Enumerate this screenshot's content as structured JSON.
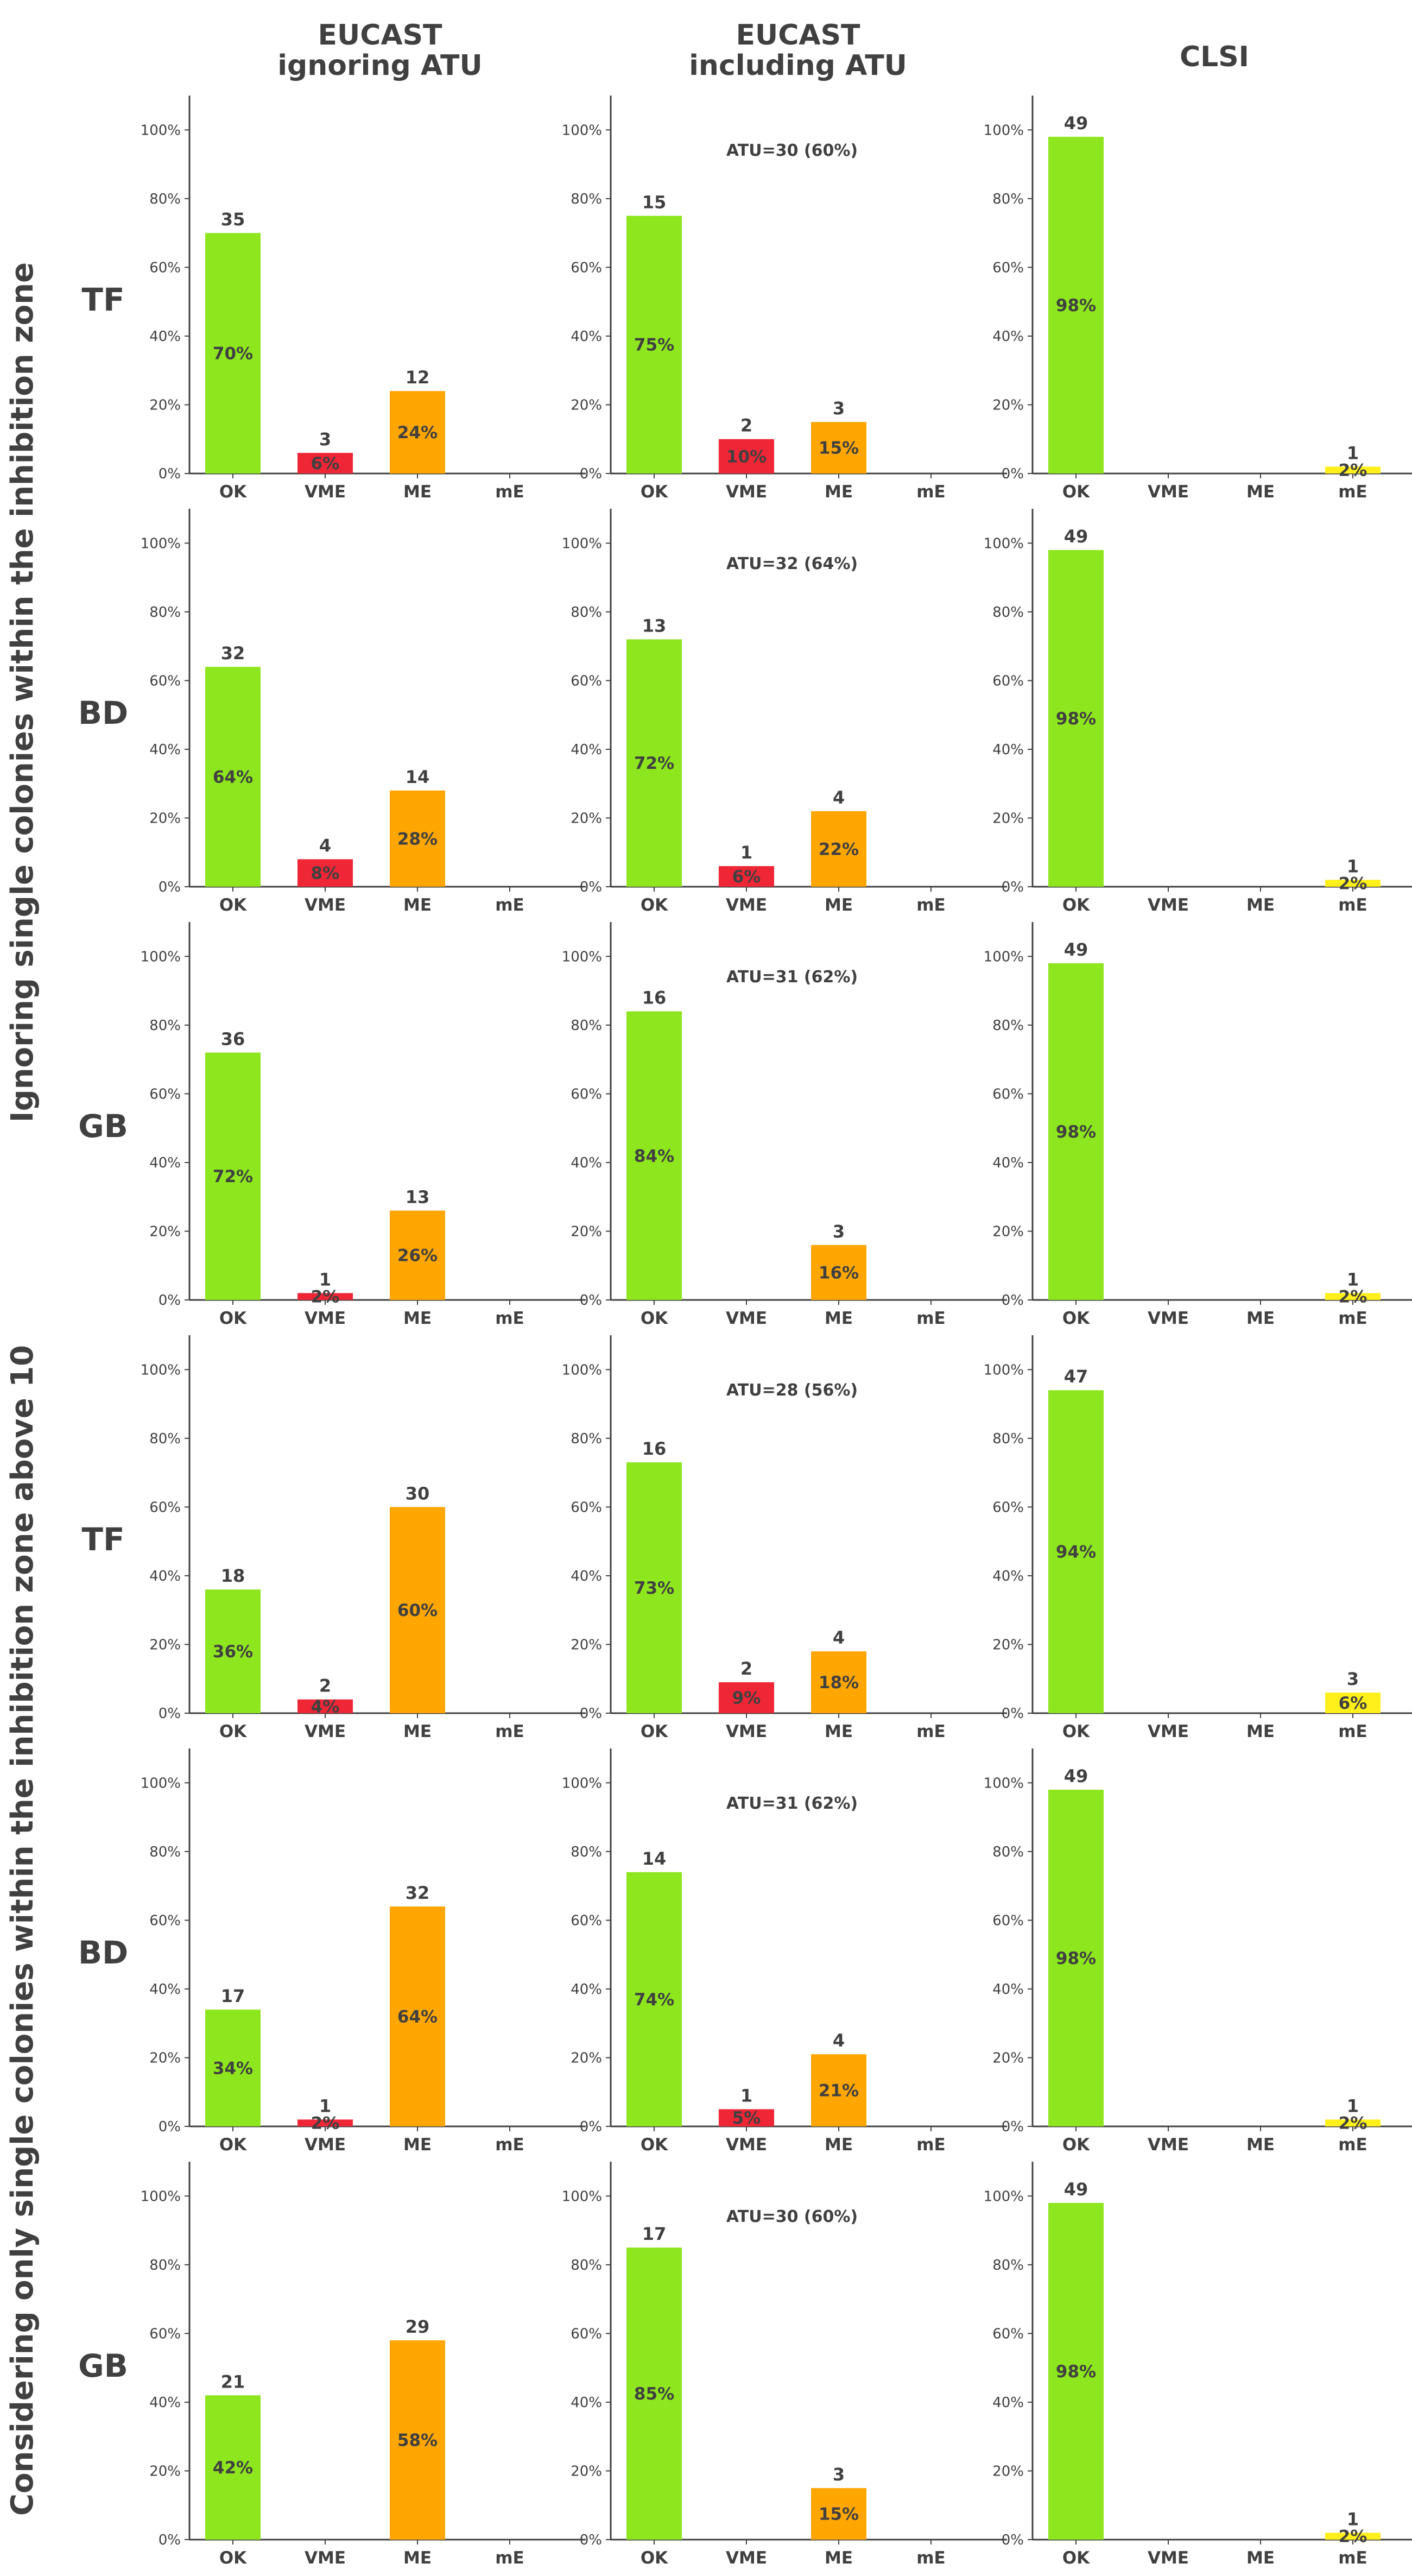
{
  "figure": {
    "column_titles": [
      [
        "EUCAST",
        "ignoring ATU"
      ],
      [
        "EUCAST",
        "including ATU"
      ],
      [
        "CLSI"
      ]
    ],
    "group_titles": [
      "Ignoring single colonies within the inhibition zone",
      "Considering only single colonies within the inhibition zone above 10"
    ],
    "row_labels": [
      "TF",
      "BD",
      "GB",
      "TF",
      "BD",
      "GB"
    ],
    "y_ticks": [
      "0%",
      "20%",
      "40%",
      "60%",
      "80%",
      "100%"
    ]
  },
  "colors": {
    "OK": "#8ee61f",
    "VME": "#ef2636",
    "ME": "#ffa603",
    "mE": "#ffef1a",
    "text": "#404040"
  },
  "chart_data": {
    "type": "bar",
    "categories": [
      "OK",
      "VME",
      "ME",
      "mE"
    ],
    "ylim": [
      0,
      110
    ],
    "ylabel": "",
    "panels": [
      {
        "row": 0,
        "col": 0,
        "values": [
          70,
          6,
          24,
          0
        ],
        "counts": [
          35,
          3,
          12,
          null
        ],
        "labels": [
          "70%",
          "6%",
          "24%",
          null
        ],
        "annotation": null
      },
      {
        "row": 0,
        "col": 1,
        "values": [
          75,
          10,
          15,
          0
        ],
        "counts": [
          15,
          2,
          3,
          null
        ],
        "labels": [
          "75%",
          "10%",
          "15%",
          null
        ],
        "annotation": "ATU=30 (60%)"
      },
      {
        "row": 0,
        "col": 2,
        "values": [
          98,
          0,
          0,
          2
        ],
        "counts": [
          49,
          null,
          null,
          1
        ],
        "labels": [
          "98%",
          null,
          null,
          "2%"
        ],
        "annotation": null
      },
      {
        "row": 1,
        "col": 0,
        "values": [
          64,
          8,
          28,
          0
        ],
        "counts": [
          32,
          4,
          14,
          null
        ],
        "labels": [
          "64%",
          "8%",
          "28%",
          null
        ],
        "annotation": null
      },
      {
        "row": 1,
        "col": 1,
        "values": [
          72,
          6,
          22,
          0
        ],
        "counts": [
          13,
          1,
          4,
          null
        ],
        "labels": [
          "72%",
          "6%",
          "22%",
          null
        ],
        "annotation": "ATU=32 (64%)"
      },
      {
        "row": 1,
        "col": 2,
        "values": [
          98,
          0,
          0,
          2
        ],
        "counts": [
          49,
          null,
          null,
          1
        ],
        "labels": [
          "98%",
          null,
          null,
          "2%"
        ],
        "annotation": null
      },
      {
        "row": 2,
        "col": 0,
        "values": [
          72,
          2,
          26,
          0
        ],
        "counts": [
          36,
          1,
          13,
          null
        ],
        "labels": [
          "72%",
          "2%",
          "26%",
          null
        ],
        "annotation": null
      },
      {
        "row": 2,
        "col": 1,
        "values": [
          84,
          0,
          16,
          0
        ],
        "counts": [
          16,
          null,
          3,
          null
        ],
        "labels": [
          "84%",
          null,
          "16%",
          null
        ],
        "annotation": "ATU=31 (62%)"
      },
      {
        "row": 2,
        "col": 2,
        "values": [
          98,
          0,
          0,
          2
        ],
        "counts": [
          49,
          null,
          null,
          1
        ],
        "labels": [
          "98%",
          null,
          null,
          "2%"
        ],
        "annotation": null
      },
      {
        "row": 3,
        "col": 0,
        "values": [
          36,
          4,
          60,
          0
        ],
        "counts": [
          18,
          2,
          30,
          null
        ],
        "labels": [
          "36%",
          "4%",
          "60%",
          null
        ],
        "annotation": null
      },
      {
        "row": 3,
        "col": 1,
        "values": [
          73,
          9,
          18,
          0
        ],
        "counts": [
          16,
          2,
          4,
          null
        ],
        "labels": [
          "73%",
          "9%",
          "18%",
          null
        ],
        "annotation": "ATU=28 (56%)"
      },
      {
        "row": 3,
        "col": 2,
        "values": [
          94,
          0,
          0,
          6
        ],
        "counts": [
          47,
          null,
          null,
          3
        ],
        "labels": [
          "94%",
          null,
          null,
          "6%"
        ],
        "annotation": null
      },
      {
        "row": 4,
        "col": 0,
        "values": [
          34,
          2,
          64,
          0
        ],
        "counts": [
          17,
          1,
          32,
          null
        ],
        "labels": [
          "34%",
          "2%",
          "64%",
          null
        ],
        "annotation": null
      },
      {
        "row": 4,
        "col": 1,
        "values": [
          74,
          5,
          21,
          0
        ],
        "counts": [
          14,
          1,
          4,
          null
        ],
        "labels": [
          "74%",
          "5%",
          "21%",
          null
        ],
        "annotation": "ATU=31 (62%)"
      },
      {
        "row": 4,
        "col": 2,
        "values": [
          98,
          0,
          0,
          2
        ],
        "counts": [
          49,
          null,
          null,
          1
        ],
        "labels": [
          "98%",
          null,
          null,
          "2%"
        ],
        "annotation": null
      },
      {
        "row": 5,
        "col": 0,
        "values": [
          42,
          0,
          58,
          0
        ],
        "counts": [
          21,
          null,
          29,
          null
        ],
        "labels": [
          "42%",
          null,
          "58%",
          null
        ],
        "annotation": null
      },
      {
        "row": 5,
        "col": 1,
        "values": [
          85,
          0,
          15,
          0
        ],
        "counts": [
          17,
          null,
          3,
          null
        ],
        "labels": [
          "85%",
          null,
          "15%",
          null
        ],
        "annotation": "ATU=30 (60%)"
      },
      {
        "row": 5,
        "col": 2,
        "values": [
          98,
          0,
          0,
          2
        ],
        "counts": [
          49,
          null,
          null,
          1
        ],
        "labels": [
          "98%",
          null,
          null,
          "2%"
        ],
        "annotation": null
      }
    ]
  }
}
